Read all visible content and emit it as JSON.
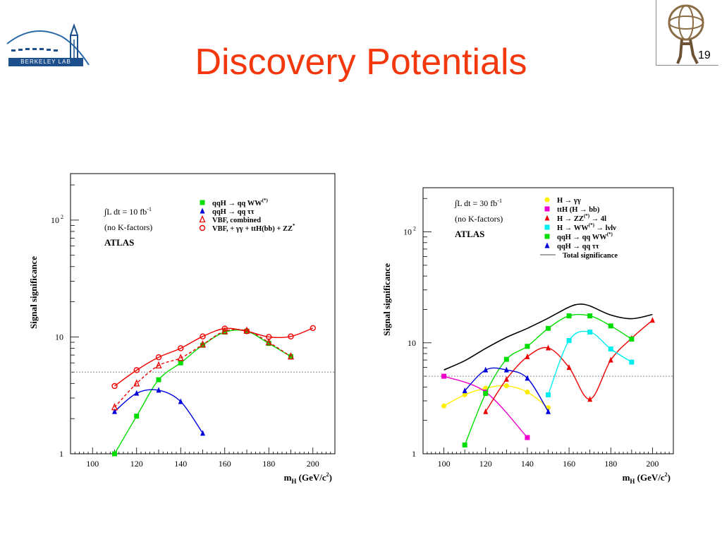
{
  "slide": {
    "title": "Discovery Potentials",
    "page_number": "19",
    "logo_left_text": "BERKELEY LAB"
  },
  "chart_data": [
    {
      "type": "line",
      "y_scale": "log",
      "xlabel": "m_H (GeV/c²)",
      "xlabel_main": "m",
      "xlabel_sub": "H",
      "xlabel_unit": "(GeV/c",
      "xlabel_sup": "2",
      "xlabel_close": ")",
      "ylabel": "Signal significance",
      "xlim": [
        90,
        210
      ],
      "ylim": [
        1,
        250
      ],
      "x_ticks": [
        100,
        120,
        140,
        160,
        180,
        200
      ],
      "y_tick_labels": [
        {
          "value": 1,
          "label": "1"
        },
        {
          "value": 10,
          "label": "10"
        },
        {
          "value": 100,
          "label": "10",
          "sup": "2"
        }
      ],
      "reference_line": 5,
      "annotations": {
        "lumi_prefix": "∫L dt = 10 fb",
        "lumi_sup": "-1",
        "kfactor": "(no K-factors)",
        "experiment": "ATLAS"
      },
      "series": [
        {
          "name": "qqH → qq WW",
          "name_sup": "(*)",
          "marker": "square",
          "color": "#00dd00",
          "x": [
            110,
            120,
            130,
            140,
            150,
            160,
            170,
            180,
            190
          ],
          "y": [
            1.0,
            2.1,
            4.3,
            6.0,
            8.5,
            11.0,
            11.2,
            8.8,
            6.8
          ]
        },
        {
          "name": "qqH → qq ττ",
          "name_sup": "",
          "marker": "triangle",
          "color": "#0000dd",
          "x": [
            110,
            120,
            130,
            140,
            150
          ],
          "y": [
            2.3,
            3.3,
            3.5,
            2.8,
            1.5
          ]
        },
        {
          "name": "VBF, combined",
          "name_sup": "",
          "marker": "open-triangle",
          "color": "#ee0000",
          "dashed": true,
          "x": [
            110,
            120,
            130,
            140,
            150,
            160,
            170,
            180,
            190
          ],
          "y": [
            2.5,
            4.0,
            5.7,
            6.6,
            8.6,
            11.2,
            11.3,
            9.0,
            6.8
          ]
        },
        {
          "name": "VBF, + γγ + ttH(bb) + ZZ",
          "name_sup": "*",
          "marker": "open-circle",
          "color": "#ee0000",
          "x": [
            110,
            120,
            130,
            140,
            150,
            160,
            170,
            180,
            190,
            200
          ],
          "y": [
            3.8,
            5.2,
            6.7,
            8.0,
            10.1,
            11.8,
            11.2,
            10.0,
            10.1,
            11.9
          ]
        }
      ]
    },
    {
      "type": "line",
      "y_scale": "log",
      "xlabel": "m_H (GeV/c²)",
      "xlabel_main": "m",
      "xlabel_sub": "H",
      "xlabel_unit": "(GeV/c",
      "xlabel_sup": "2",
      "xlabel_close": ")",
      "ylabel": "Signal significance",
      "xlim": [
        90,
        210
      ],
      "ylim": [
        1,
        250
      ],
      "x_ticks": [
        100,
        120,
        140,
        160,
        180,
        200
      ],
      "y_tick_labels": [
        {
          "value": 1,
          "label": "1"
        },
        {
          "value": 10,
          "label": "10"
        },
        {
          "value": 100,
          "label": "10",
          "sup": "2"
        }
      ],
      "reference_line": 5,
      "annotations": {
        "lumi_prefix": "∫L dt = 30 fb",
        "lumi_sup": "-1",
        "kfactor": "(no K-factors)",
        "experiment": "ATLAS"
      },
      "series": [
        {
          "name": "H → γγ",
          "name_sup": "",
          "marker": "circle",
          "color": "#ffee00",
          "x": [
            100,
            110,
            120,
            130,
            140,
            150
          ],
          "y": [
            2.7,
            3.4,
            3.9,
            4.1,
            3.6,
            2.6
          ]
        },
        {
          "name": "ttH (H → bb)",
          "name_sup": "",
          "marker": "square",
          "color": "#ee00cc",
          "x": [
            100,
            120,
            140
          ],
          "y": [
            5.0,
            3.6,
            1.4
          ]
        },
        {
          "name": "H → ZZ",
          "name_sup": "(*)",
          "name_suffix": "→ 4l",
          "marker": "triangle",
          "color": "#ee0000",
          "x": [
            120,
            130,
            140,
            150,
            160,
            170,
            180,
            190,
            200
          ],
          "y": [
            2.4,
            4.7,
            7.5,
            9.0,
            6.0,
            3.1,
            7.0,
            11.0,
            16.0
          ]
        },
        {
          "name": "H → WW",
          "name_sup": "(*)",
          "name_suffix": "→ lνlν",
          "marker": "square",
          "color": "#00eeee",
          "x": [
            150,
            160,
            170,
            180,
            190
          ],
          "y": [
            3.4,
            10.5,
            12.5,
            8.8,
            6.7
          ]
        },
        {
          "name": "qqH → qq WW",
          "name_sup": "(*)",
          "marker": "square",
          "color": "#00dd00",
          "x": [
            110,
            120,
            130,
            140,
            150,
            160,
            170,
            180,
            190
          ],
          "y": [
            1.2,
            3.5,
            7.1,
            9.3,
            13.5,
            17.5,
            17.5,
            14.2,
            10.8
          ]
        },
        {
          "name": "qqH → qq ττ",
          "name_sup": "",
          "marker": "triangle",
          "color": "#0000dd",
          "x": [
            110,
            120,
            130,
            140,
            150
          ],
          "y": [
            3.7,
            5.7,
            5.7,
            4.8,
            2.4
          ]
        },
        {
          "name": "Total significance",
          "name_sup": "",
          "marker": "none",
          "color": "#000000",
          "line_only": true,
          "x": [
            100,
            110,
            120,
            130,
            140,
            150,
            160,
            165,
            170,
            180,
            190,
            200
          ],
          "y": [
            5.7,
            6.9,
            8.9,
            11.2,
            13.5,
            16.7,
            21.0,
            22.3,
            21.5,
            17.8,
            16.5,
            18.0
          ]
        }
      ]
    }
  ]
}
